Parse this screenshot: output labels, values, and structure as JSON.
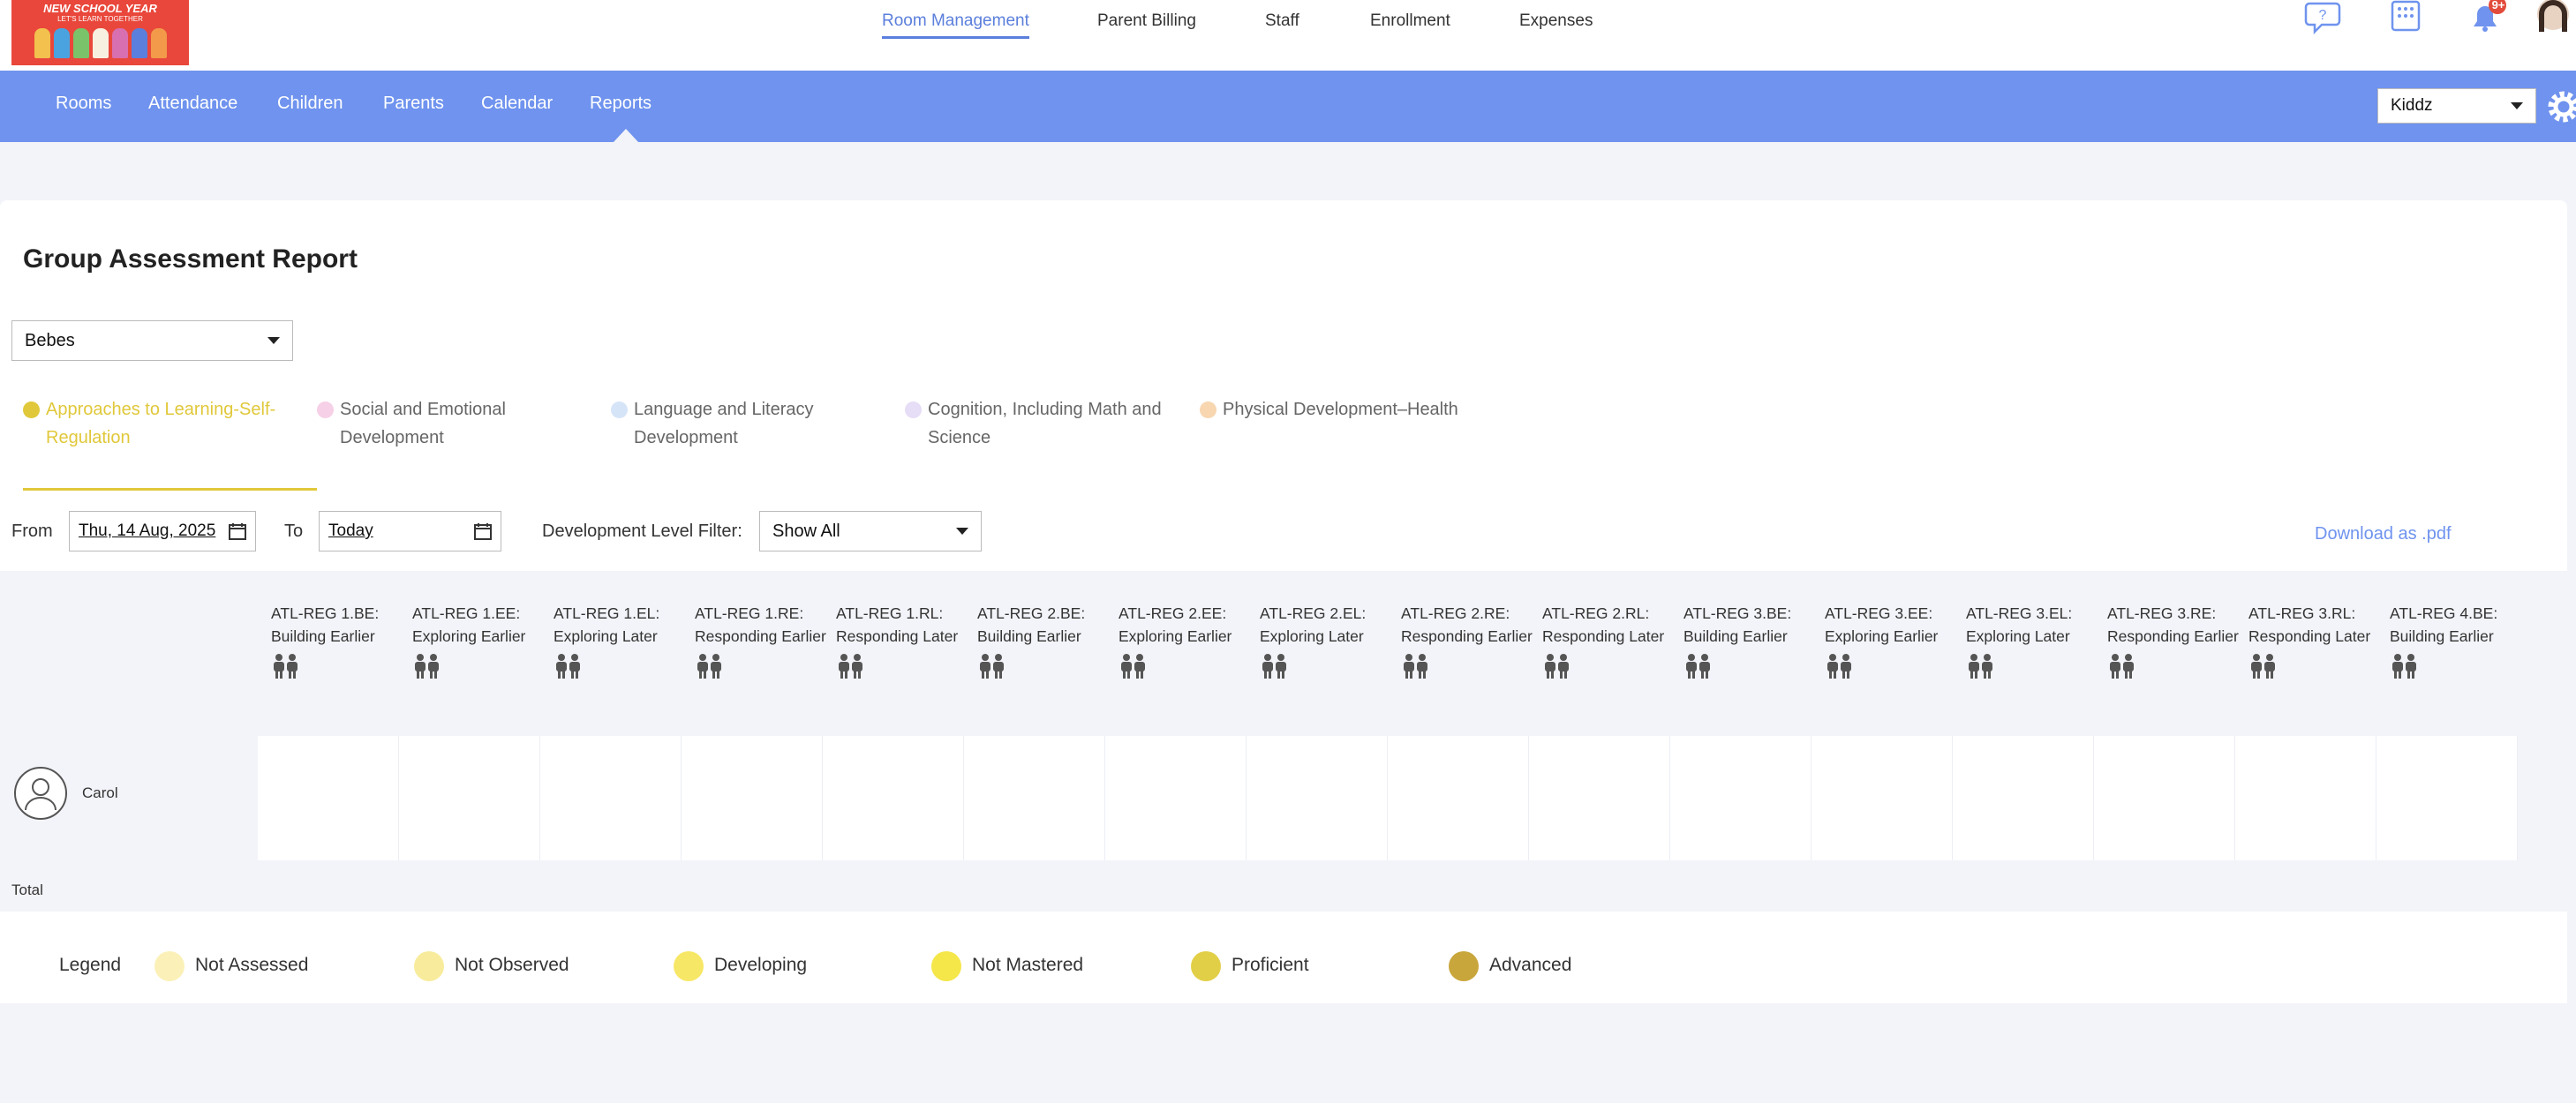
{
  "logo": {
    "title": "NEW SCHOOL YEAR",
    "subtitle": "LET'S LEARN TOGETHER"
  },
  "top_nav": {
    "items": [
      "Room Management",
      "Parent Billing",
      "Staff",
      "Enrollment",
      "Expenses"
    ],
    "active": 0,
    "badge": "9+"
  },
  "sub_nav": {
    "items": [
      "Rooms",
      "Attendance",
      "Children",
      "Parents",
      "Calendar",
      "Reports"
    ],
    "active": 5,
    "organization": "Kiddz"
  },
  "page": {
    "title": "Group Assessment Report",
    "group": "Bebes"
  },
  "domain_tabs": {
    "active": 0,
    "items": [
      {
        "label": "Approaches to Learning-Self-Regulation",
        "color": "#e0c83a"
      },
      {
        "label": "Social and Emotional Development",
        "color": "#f6d0e6"
      },
      {
        "label": "Language and Literacy Development",
        "color": "#d6e4f8"
      },
      {
        "label": "Cognition, Including Math and Science",
        "color": "#e6ddf6"
      },
      {
        "label": "Physical Development–Health",
        "color": "#f7d6b0"
      }
    ]
  },
  "filters": {
    "from_label": "From",
    "from": "Thu, 14 Aug, 2025",
    "to_label": "To",
    "to": "Today",
    "level_label": "Development Level Filter:",
    "level": "Show All",
    "download": "Download as .pdf"
  },
  "table": {
    "columns": [
      "ATL-REG 1.BE: Building Earlier",
      "ATL-REG 1.EE: Exploring Earlier",
      "ATL-REG 1.EL: Exploring Later",
      "ATL-REG 1.RE: Responding Earlier",
      "ATL-REG 1.RL: Responding Later",
      "ATL-REG 2.BE: Building Earlier",
      "ATL-REG 2.EE: Exploring Earlier",
      "ATL-REG 2.EL: Exploring Later",
      "ATL-REG 2.RE: Responding Earlier",
      "ATL-REG 2.RL: Responding Later",
      "ATL-REG 3.BE: Building Earlier",
      "ATL-REG 3.EE: Exploring Earlier",
      "ATL-REG 3.EL: Exploring Later",
      "ATL-REG 3.RE: Responding Earlier",
      "ATL-REG 3.RL: Responding Later",
      "ATL-REG 4.BE: Building Earlier"
    ],
    "rows": [
      "Carol"
    ],
    "total": "Total"
  },
  "legend": {
    "title": "Legend",
    "items": [
      {
        "label": "Not Assessed",
        "color": "#fbf1b8"
      },
      {
        "label": "Not Observed",
        "color": "#f8ec9c"
      },
      {
        "label": "Developing",
        "color": "#f7e766"
      },
      {
        "label": "Not Mastered",
        "color": "#f5e649"
      },
      {
        "label": "Proficient",
        "color": "#e2cf48"
      },
      {
        "label": "Advanced",
        "color": "#c9a63c"
      }
    ]
  }
}
